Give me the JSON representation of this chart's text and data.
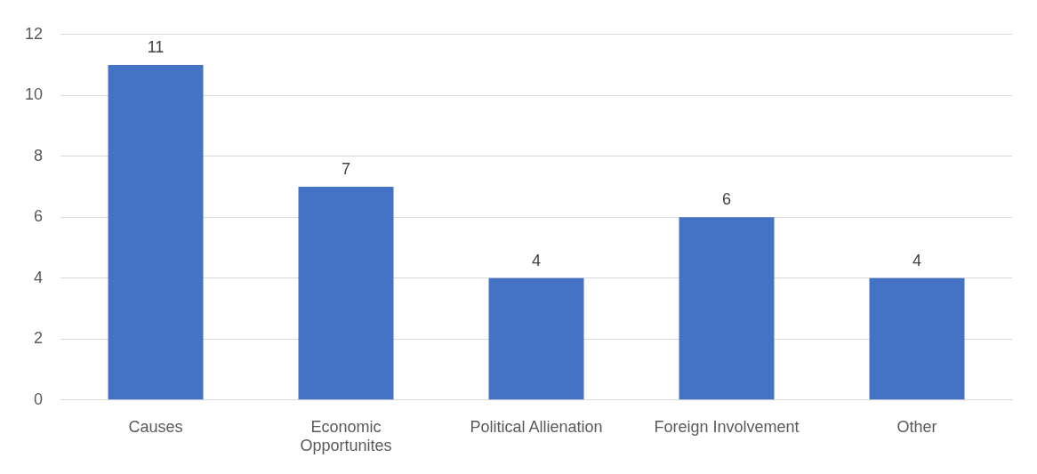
{
  "chart_data": {
    "type": "bar",
    "categories": [
      "Causes",
      "Economic Opportunites",
      "Political Allienation",
      "Foreign Involvement",
      "Other"
    ],
    "values": [
      11,
      7,
      4,
      6,
      4
    ],
    "color": "#4472c4",
    "ylim": [
      0,
      12
    ],
    "yticks": [
      0,
      2,
      4,
      6,
      8,
      10,
      12
    ],
    "grid": "y",
    "data_labels": true,
    "legend": false
  }
}
